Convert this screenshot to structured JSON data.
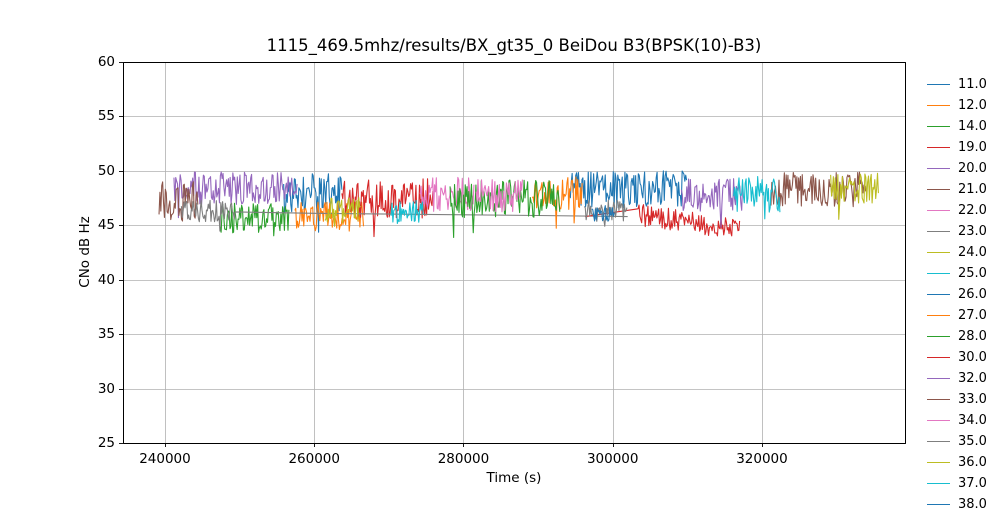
{
  "window": {
    "background": "#ffffff"
  },
  "chart_data": {
    "type": "line",
    "title": "1115_469.5mhz/results/BX_gt35_0 BeiDou B3(BPSK(10)-B3)",
    "xlabel": "Time (s)",
    "ylabel": "CNo dB Hz",
    "xlim": [
      234372,
      339163
    ],
    "ylim": [
      25,
      60
    ],
    "xticks": [
      240000,
      260000,
      280000,
      300000,
      320000
    ],
    "xtick_labels": [
      "240000",
      "260000",
      "280000",
      "300000",
      "320000"
    ],
    "yticks": [
      25,
      30,
      35,
      40,
      45,
      50,
      55,
      60
    ],
    "ytick_labels": [
      "25",
      "30",
      "35",
      "40",
      "45",
      "50",
      "55",
      "60"
    ],
    "grid": true,
    "grid_color": "#b0b0b0",
    "spine_color": "#000000",
    "legend_position": "right",
    "noise_step": 120,
    "legend": [
      {
        "label": "11.0",
        "color": "#1f77b4"
      },
      {
        "label": "12.0",
        "color": "#ff7f0e"
      },
      {
        "label": "14.0",
        "color": "#2ca02c"
      },
      {
        "label": "19.0",
        "color": "#d62728"
      },
      {
        "label": "20.0",
        "color": "#9467bd"
      },
      {
        "label": "21.0",
        "color": "#8c564b"
      },
      {
        "label": "22.0",
        "color": "#e377c2"
      },
      {
        "label": "23.0",
        "color": "#7f7f7f"
      },
      {
        "label": "24.0",
        "color": "#bcbd22"
      },
      {
        "label": "25.0",
        "color": "#17becf"
      },
      {
        "label": "26.0",
        "color": "#1f77b4"
      },
      {
        "label": "27.0",
        "color": "#ff7f0e"
      },
      {
        "label": "28.0",
        "color": "#2ca02c"
      },
      {
        "label": "30.0",
        "color": "#d62728"
      },
      {
        "label": "32.0",
        "color": "#9467bd"
      },
      {
        "label": "33.0",
        "color": "#8c564b"
      },
      {
        "label": "34.0",
        "color": "#e377c2"
      },
      {
        "label": "35.0",
        "color": "#7f7f7f"
      },
      {
        "label": "36.0",
        "color": "#bcbd22"
      },
      {
        "label": "37.0",
        "color": "#17becf"
      },
      {
        "label": "38.0",
        "color": "#1f77b4"
      }
    ],
    "series": [
      {
        "name": "11.0",
        "color": "#1f77b4",
        "seed": 11,
        "segments": [
          {
            "x0": 255900,
            "x1": 263700,
            "base": 47.9,
            "amp": 1.9,
            "spike": 2.2
          }
        ]
      },
      {
        "name": "12.0",
        "color": "#ff7f0e",
        "seed": 12,
        "segments": [
          {
            "x0": 257400,
            "x1": 266600,
            "base": 45.9,
            "amp": 1.3,
            "spike": 2.4
          }
        ]
      },
      {
        "name": "14.0",
        "color": "#2ca02c",
        "seed": 14,
        "segments": [
          {
            "x0": 247400,
            "x1": 256600,
            "base": 45.7,
            "amp": 1.4,
            "spike": 3.2
          }
        ]
      },
      {
        "name": "19.0",
        "color": "#d62728",
        "seed": 19,
        "segments": [
          {
            "x0": 263700,
            "x1": 275900,
            "base": 47.5,
            "amp": 1.8,
            "spike": 3.0
          }
        ]
      },
      {
        "name": "20.0",
        "color": "#9467bd",
        "seed": 20,
        "segments": [
          {
            "x0": 241200,
            "x1": 257700,
            "base": 48.4,
            "amp": 1.5,
            "spike": 1.8
          }
        ]
      },
      {
        "name": "21.0",
        "color": "#8c564b",
        "seed": 21,
        "segments": [
          {
            "x0": 239200,
            "x1": 244400,
            "base": 47.2,
            "amp": 1.9,
            "spike": 2.2
          }
        ]
      },
      {
        "name": "22.0",
        "color": "#e377c2",
        "seed": 22,
        "segments": [
          {
            "x0": 274200,
            "x1": 281400,
            "base": 47.8,
            "amp": 1.6,
            "spike": 2.0
          }
        ]
      },
      {
        "name": "23.0",
        "color": "#7f7f7f",
        "seed": 23,
        "segments": [
          {
            "x0": 242200,
            "x1": 249400,
            "base": 46.3,
            "amp": 1.0,
            "spike": 1.2
          },
          {
            "pts": [
              [
                260000,
                46.1
              ],
              [
                275000,
                46.0
              ],
              [
                290000,
                45.9
              ],
              [
                302000,
                45.8
              ]
            ]
          }
        ]
      },
      {
        "name": "24.0",
        "color": "#bcbd22",
        "seed": 24,
        "segments": [
          {
            "x0": 261400,
            "x1": 266200,
            "base": 46.4,
            "amp": 1.2,
            "spike": 1.5
          }
        ]
      },
      {
        "name": "25.0",
        "color": "#17becf",
        "seed": 25,
        "segments": [
          {
            "x0": 270300,
            "x1": 274600,
            "base": 46.2,
            "amp": 1.1,
            "spike": 1.5
          }
        ]
      },
      {
        "name": "26.0",
        "color": "#1f77b4",
        "seed": 26,
        "segments": [
          {
            "x0": 294200,
            "x1": 309900,
            "base": 48.3,
            "amp": 1.7,
            "spike": 2.6
          }
        ]
      },
      {
        "name": "27.0",
        "color": "#ff7f0e",
        "seed": 27,
        "segments": [
          {
            "x0": 289200,
            "x1": 295900,
            "base": 47.9,
            "amp": 1.6,
            "spike": 2.2
          }
        ]
      },
      {
        "name": "28.0",
        "color": "#2ca02c",
        "seed": 28,
        "segments": [
          {
            "x0": 278200,
            "x1": 292900,
            "base": 47.4,
            "amp": 1.8,
            "spike": 3.4
          }
        ]
      },
      {
        "name": "30.0",
        "color": "#d62728",
        "seed": 30,
        "segments": [
          {
            "pts": [
              [
                296300,
                45.8
              ]
            ]
          },
          {
            "x0": 303400,
            "x1": 316900,
            "base": 46.0,
            "base2": 44.6,
            "amp": 1.0,
            "spike": 1.2
          },
          {
            "pts": [
              [
                317000,
                45.4
              ]
            ]
          }
        ]
      },
      {
        "name": "32.0",
        "color": "#9467bd",
        "seed": 32,
        "segments": [
          {
            "x0": 309200,
            "x1": 317400,
            "base": 48.0,
            "amp": 1.7,
            "spike": 2.4
          }
        ]
      },
      {
        "name": "33.0",
        "color": "#8c564b",
        "seed": 33,
        "segments": [
          {
            "x0": 321200,
            "x1": 333900,
            "base": 48.3,
            "amp": 1.6,
            "spike": 2.2
          }
        ]
      },
      {
        "name": "34.0",
        "color": "#e377c2",
        "seed": 34,
        "segments": [
          {
            "x0": 281700,
            "x1": 287900,
            "base": 47.7,
            "amp": 1.5,
            "spike": 1.8
          }
        ]
      },
      {
        "name": "35.0",
        "color": "#7f7f7f",
        "seed": 35,
        "segments": [
          {
            "x0": 296200,
            "x1": 301900,
            "base": 46.3,
            "amp": 1.0,
            "spike": 1.4
          }
        ]
      },
      {
        "name": "36.0",
        "color": "#bcbd22",
        "seed": 36,
        "segments": [
          {
            "x0": 329200,
            "x1": 335600,
            "base": 48.4,
            "amp": 1.4,
            "spike": 1.6
          }
        ]
      },
      {
        "name": "37.0",
        "color": "#17becf",
        "seed": 37,
        "segments": [
          {
            "x0": 316200,
            "x1": 322400,
            "base": 47.9,
            "amp": 1.7,
            "spike": 2.4
          }
        ]
      },
      {
        "name": "38.0",
        "color": "#1f77b4",
        "seed": 38,
        "segments": [
          {
            "x0": 297200,
            "x1": 300200,
            "base": 46.0,
            "amp": 0.9,
            "spike": 1.0
          }
        ]
      }
    ]
  }
}
